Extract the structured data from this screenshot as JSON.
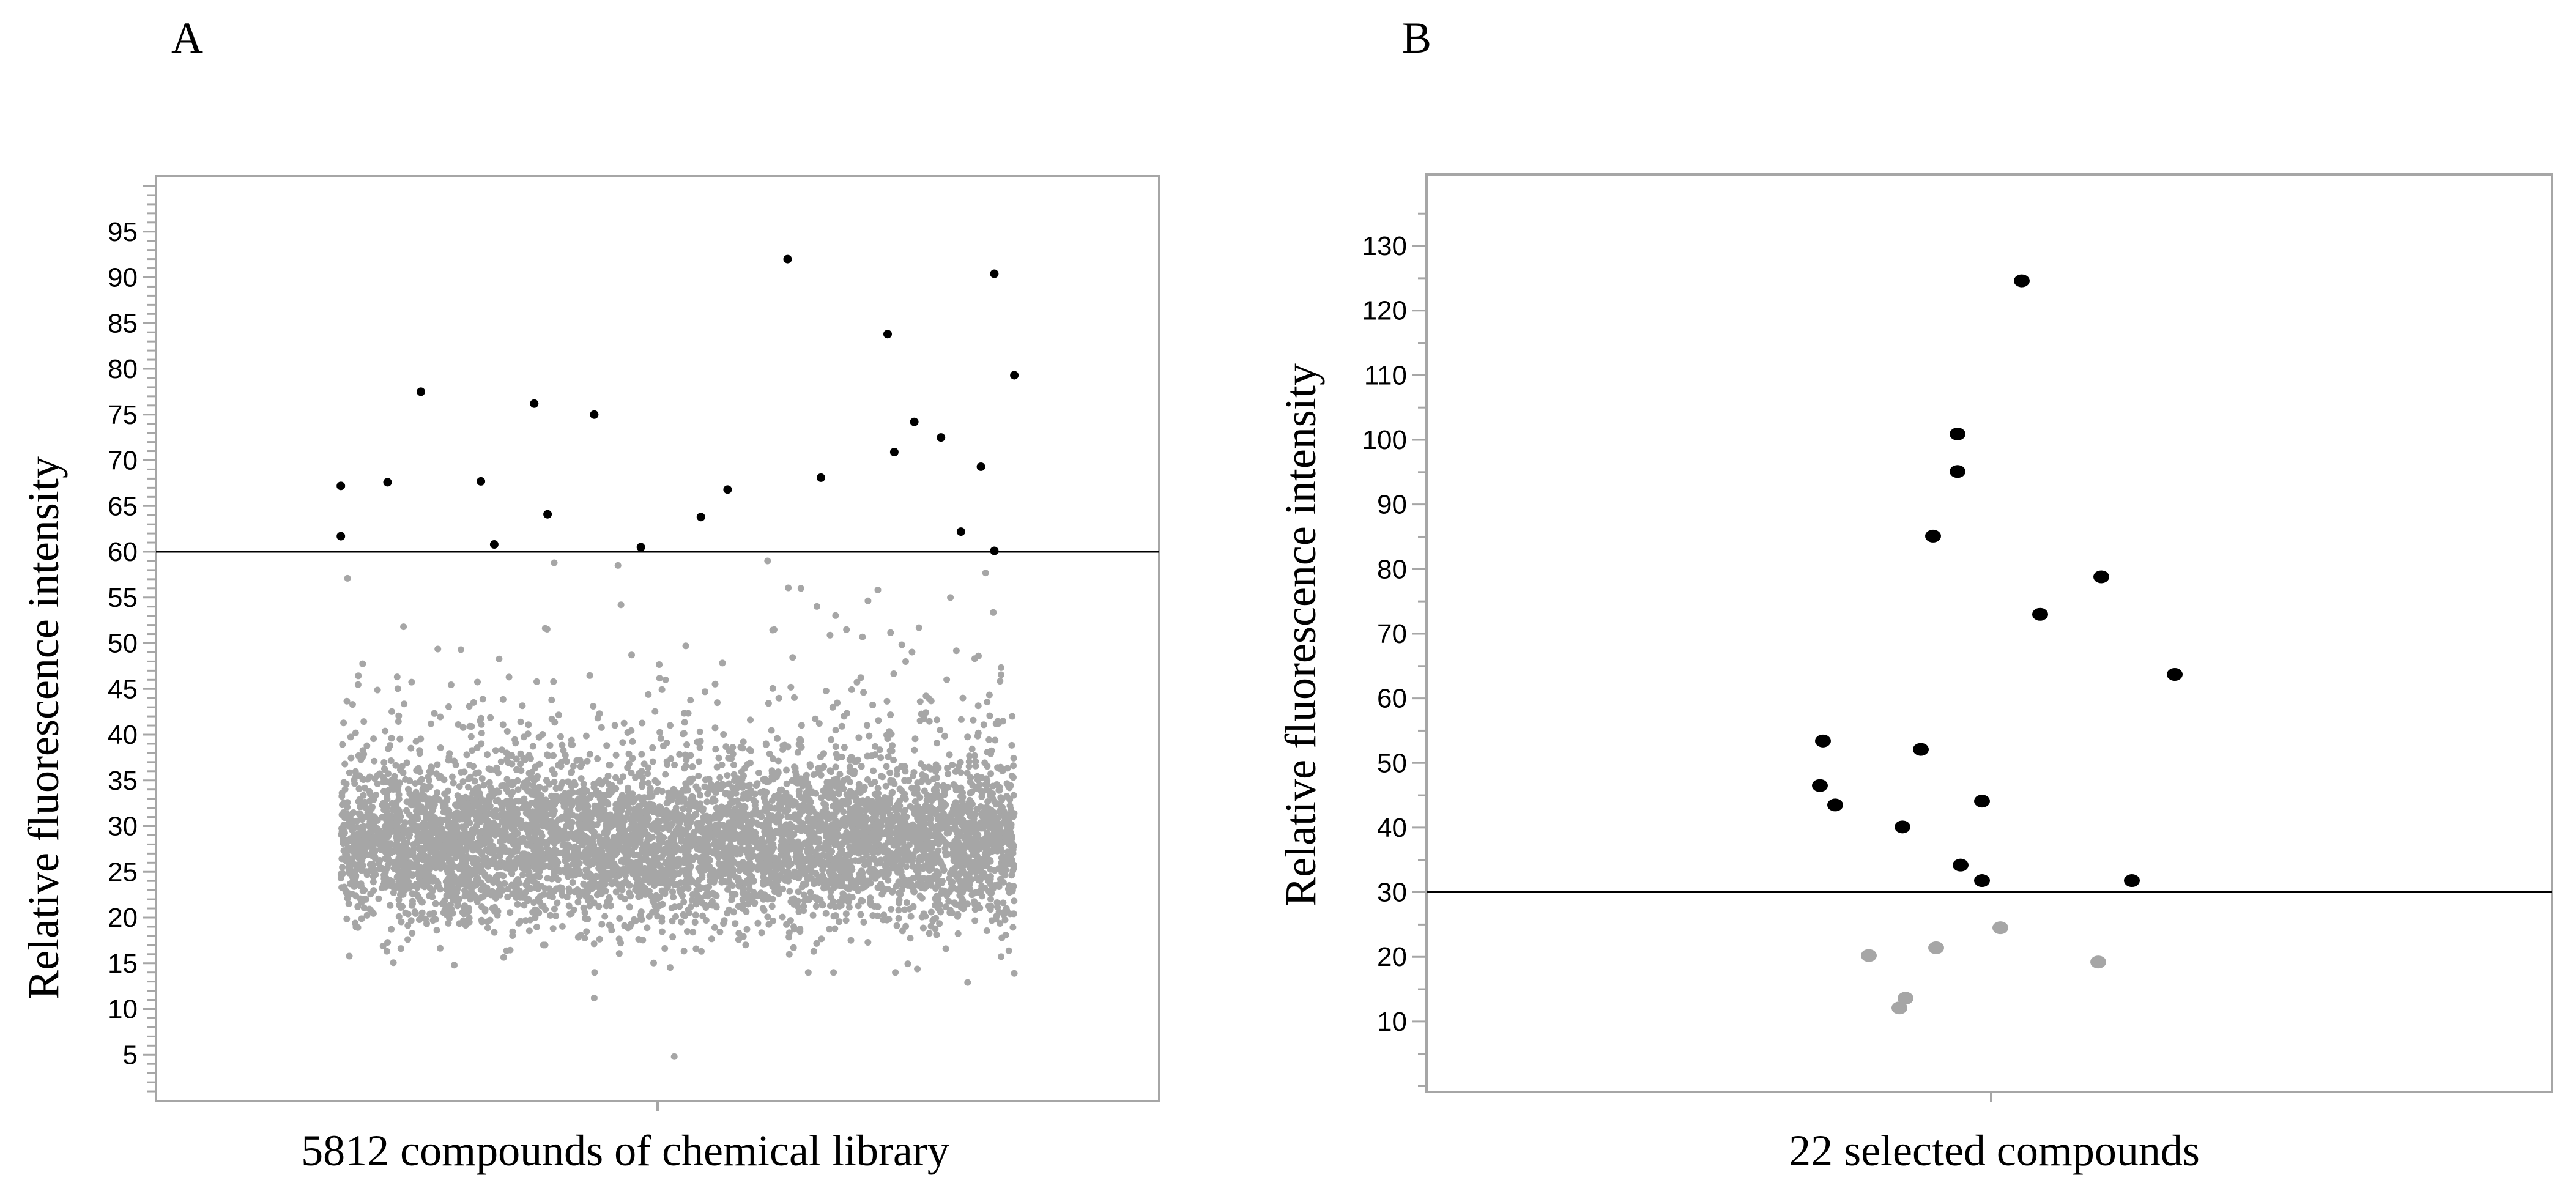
{
  "chart_data": [
    {
      "type": "scatter",
      "panel_label": "A",
      "xlabel": "5812 compounds of chemical library",
      "ylabel": "Relative fluorescence intensity",
      "ylim": [
        0,
        100
      ],
      "yticks": [
        5,
        10,
        15,
        20,
        25,
        30,
        35,
        40,
        45,
        50,
        55,
        60,
        65,
        70,
        75,
        80,
        85,
        90,
        95
      ],
      "threshold": 60,
      "grid": false,
      "legend": "none",
      "colors": {
        "above_threshold": "#000000",
        "below_threshold": "#a6a6a6",
        "threshold_line": "#000000"
      },
      "series": [
        {
          "values_above_threshold": [
            [
              0.08,
              67.2
            ],
            [
              0.08,
              61.7
            ],
            [
              0.15,
              67.6
            ],
            [
              0.2,
              77.5
            ],
            [
              0.29,
              67.7
            ],
            [
              0.31,
              60.8
            ],
            [
              0.37,
              76.2
            ],
            [
              0.39,
              64.1
            ],
            [
              0.46,
              75.0
            ],
            [
              0.53,
              60.5
            ],
            [
              0.62,
              63.8
            ],
            [
              0.66,
              66.8
            ],
            [
              0.75,
              92.0
            ],
            [
              0.8,
              68.1
            ],
            [
              0.9,
              83.8
            ],
            [
              0.91,
              70.9
            ],
            [
              0.94,
              74.2
            ],
            [
              0.98,
              72.5
            ],
            [
              1.01,
              62.2
            ],
            [
              1.04,
              69.3
            ],
            [
              1.06,
              60.1
            ],
            [
              1.06,
              90.4
            ],
            [
              1.09,
              79.3
            ]
          ],
          "values_below_threshold_outliers": [
            [
              0.58,
              4.8
            ],
            [
              0.46,
              11.2
            ],
            [
              1.02,
              12.9
            ],
            [
              1.09,
              13.9
            ],
            [
              0.25,
              14.8
            ],
            [
              0.4,
              58.8
            ],
            [
              0.72,
              59.0
            ],
            [
              0.09,
              57.1
            ],
            [
              0.77,
              56.0
            ]
          ],
          "bulk_distribution": {
            "count": 5812,
            "x_range": [
              0.08,
              1.09
            ],
            "center": 28,
            "typical_range": [
              17,
              45
            ],
            "max_below_threshold": 59.5,
            "min": 4.8
          }
        }
      ]
    },
    {
      "type": "scatter",
      "panel_label": "B",
      "xlabel": "22 selected compounds",
      "ylabel": "Relative fluorescence intensity",
      "ylim": [
        0,
        140
      ],
      "yticks": [
        10,
        20,
        30,
        40,
        50,
        60,
        70,
        80,
        90,
        100,
        110,
        120,
        130
      ],
      "threshold": 30,
      "grid": false,
      "legend": "none",
      "colors": {
        "above_threshold": "#000000",
        "below_threshold": "#a6a6a6",
        "threshold_line": "#000000"
      },
      "series": [
        {
          "points": [
            {
              "x": -0.55,
              "y": 53.4
            },
            {
              "x": -0.56,
              "y": 46.5
            },
            {
              "x": -0.51,
              "y": 43.5
            },
            {
              "x": -0.29,
              "y": 40.1
            },
            {
              "x": -0.23,
              "y": 52.1
            },
            {
              "x": -0.19,
              "y": 85.1
            },
            {
              "x": -0.1,
              "y": 34.2
            },
            {
              "x": -0.11,
              "y": 95.1
            },
            {
              "x": -0.11,
              "y": 100.9
            },
            {
              "x": -0.03,
              "y": 31.8
            },
            {
              "x": -0.03,
              "y": 44.1
            },
            {
              "x": 0.1,
              "y": 124.6
            },
            {
              "x": 0.16,
              "y": 73.0
            },
            {
              "x": 0.36,
              "y": 78.8
            },
            {
              "x": 0.46,
              "y": 31.8
            },
            {
              "x": 0.6,
              "y": 63.7
            },
            {
              "x": -0.4,
              "y": 20.2
            },
            {
              "x": -0.3,
              "y": 12.1
            },
            {
              "x": -0.28,
              "y": 13.6
            },
            {
              "x": -0.18,
              "y": 21.4
            },
            {
              "x": 0.03,
              "y": 24.5
            },
            {
              "x": 0.35,
              "y": 19.2
            }
          ]
        }
      ]
    }
  ]
}
